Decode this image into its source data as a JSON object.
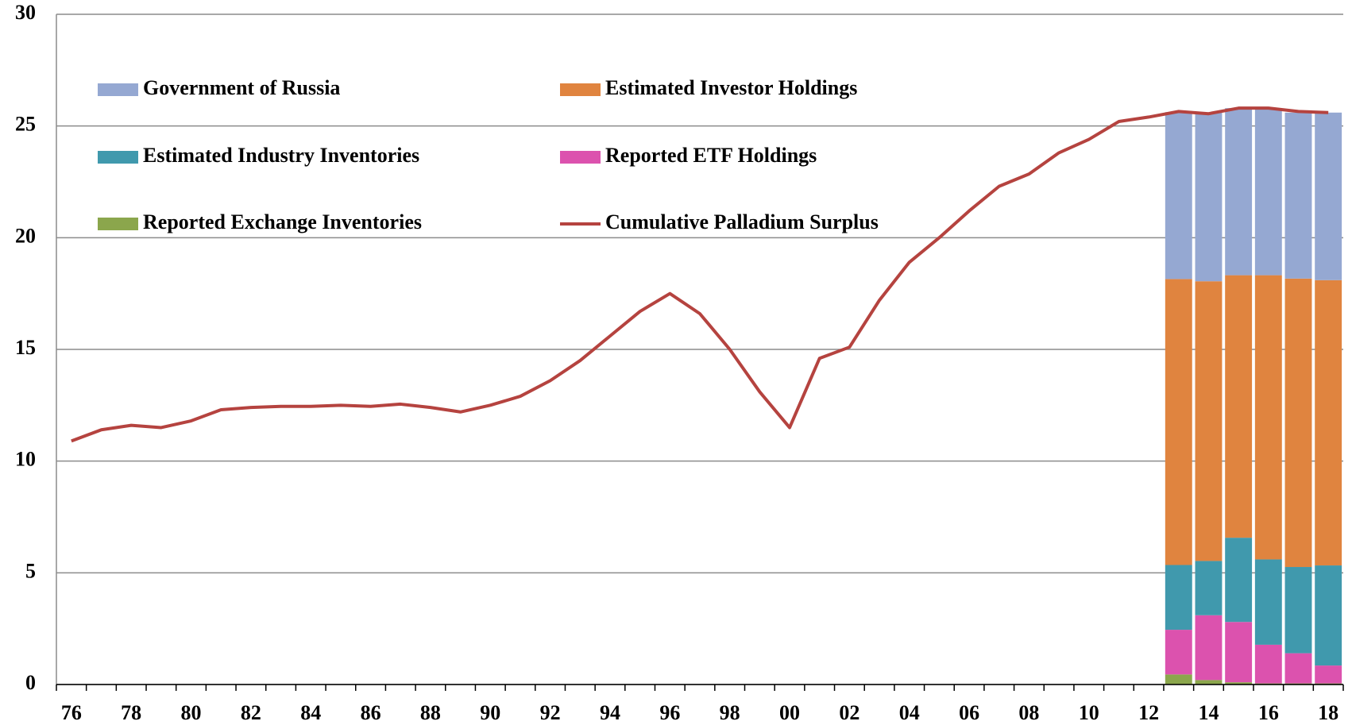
{
  "chart_data": {
    "type": "bar",
    "stacked": true,
    "grid": true,
    "categories": [
      "76",
      null,
      "78",
      null,
      "80",
      null,
      "82",
      null,
      "84",
      null,
      "86",
      null,
      "88",
      null,
      "90",
      null,
      "92",
      null,
      "94",
      null,
      "96",
      null,
      "98",
      null,
      "00",
      null,
      "02",
      null,
      "04",
      null,
      "06",
      null,
      "08",
      null,
      "10",
      null,
      "12",
      null,
      "14",
      null,
      "16",
      null,
      "18"
    ],
    "ylim": [
      0,
      30
    ],
    "yticks": [
      0,
      5,
      10,
      15,
      20,
      25,
      30
    ],
    "series": [
      {
        "name": "Government of Russia",
        "color": "#95a8d2",
        "values": [
          null,
          null,
          null,
          null,
          null,
          null,
          null,
          null,
          null,
          null,
          null,
          null,
          null,
          null,
          null,
          null,
          null,
          null,
          null,
          null,
          null,
          null,
          null,
          null,
          null,
          null,
          null,
          null,
          null,
          null,
          null,
          null,
          null,
          null,
          null,
          null,
          null,
          7.47,
          7.55,
          7.48,
          7.48,
          7.43,
          7.5
        ]
      },
      {
        "name": "Estimated Investor Holdings",
        "color": "#e0843f",
        "values": [
          null,
          null,
          null,
          null,
          null,
          null,
          null,
          null,
          null,
          null,
          null,
          null,
          null,
          null,
          null,
          null,
          null,
          null,
          null,
          null,
          null,
          null,
          null,
          null,
          null,
          null,
          null,
          null,
          null,
          null,
          null,
          null,
          null,
          null,
          null,
          null,
          null,
          12.8,
          12.52,
          11.75,
          12.72,
          12.91,
          12.77
        ]
      },
      {
        "name": "Estimated Industry Inventories",
        "color": "#4099ad",
        "values": [
          null,
          null,
          null,
          null,
          null,
          null,
          null,
          null,
          null,
          null,
          null,
          null,
          null,
          null,
          null,
          null,
          null,
          null,
          null,
          null,
          null,
          null,
          null,
          null,
          null,
          null,
          null,
          null,
          null,
          null,
          null,
          null,
          null,
          null,
          null,
          null,
          null,
          2.9,
          2.43,
          3.77,
          3.82,
          3.86,
          4.48
        ]
      },
      {
        "name": "Reported ETF Holdings",
        "color": "#dc52ae",
        "values": [
          null,
          null,
          null,
          null,
          null,
          null,
          null,
          null,
          null,
          null,
          null,
          null,
          null,
          null,
          null,
          null,
          null,
          null,
          null,
          null,
          null,
          null,
          null,
          null,
          null,
          null,
          null,
          null,
          null,
          null,
          null,
          null,
          null,
          null,
          null,
          null,
          null,
          2.0,
          2.9,
          2.7,
          1.73,
          1.35,
          0.8
        ]
      },
      {
        "name": "Reported Exchange Inventories",
        "color": "#8ba64c",
        "values": [
          null,
          null,
          null,
          null,
          null,
          null,
          null,
          null,
          null,
          null,
          null,
          null,
          null,
          null,
          null,
          null,
          null,
          null,
          null,
          null,
          null,
          null,
          null,
          null,
          null,
          null,
          null,
          null,
          null,
          null,
          null,
          null,
          null,
          null,
          null,
          null,
          null,
          0.45,
          0.2,
          0.1,
          0.05,
          0.05,
          0.05
        ]
      },
      {
        "name": "Cumulative Palladium Surplus",
        "color": "#b5433f",
        "type": "line",
        "values": [
          10.9,
          11.4,
          11.6,
          11.5,
          11.8,
          12.3,
          12.4,
          12.45,
          12.45,
          12.5,
          12.45,
          12.55,
          12.4,
          12.2,
          12.5,
          12.9,
          13.6,
          14.5,
          15.6,
          16.7,
          17.5,
          16.6,
          15.0,
          13.1,
          11.5,
          14.6,
          15.1,
          17.2,
          18.9,
          20.0,
          21.2,
          22.3,
          22.85,
          23.8,
          24.4,
          25.2,
          25.4,
          25.65,
          25.55,
          25.8,
          25.8,
          25.65,
          25.6
        ]
      }
    ]
  }
}
